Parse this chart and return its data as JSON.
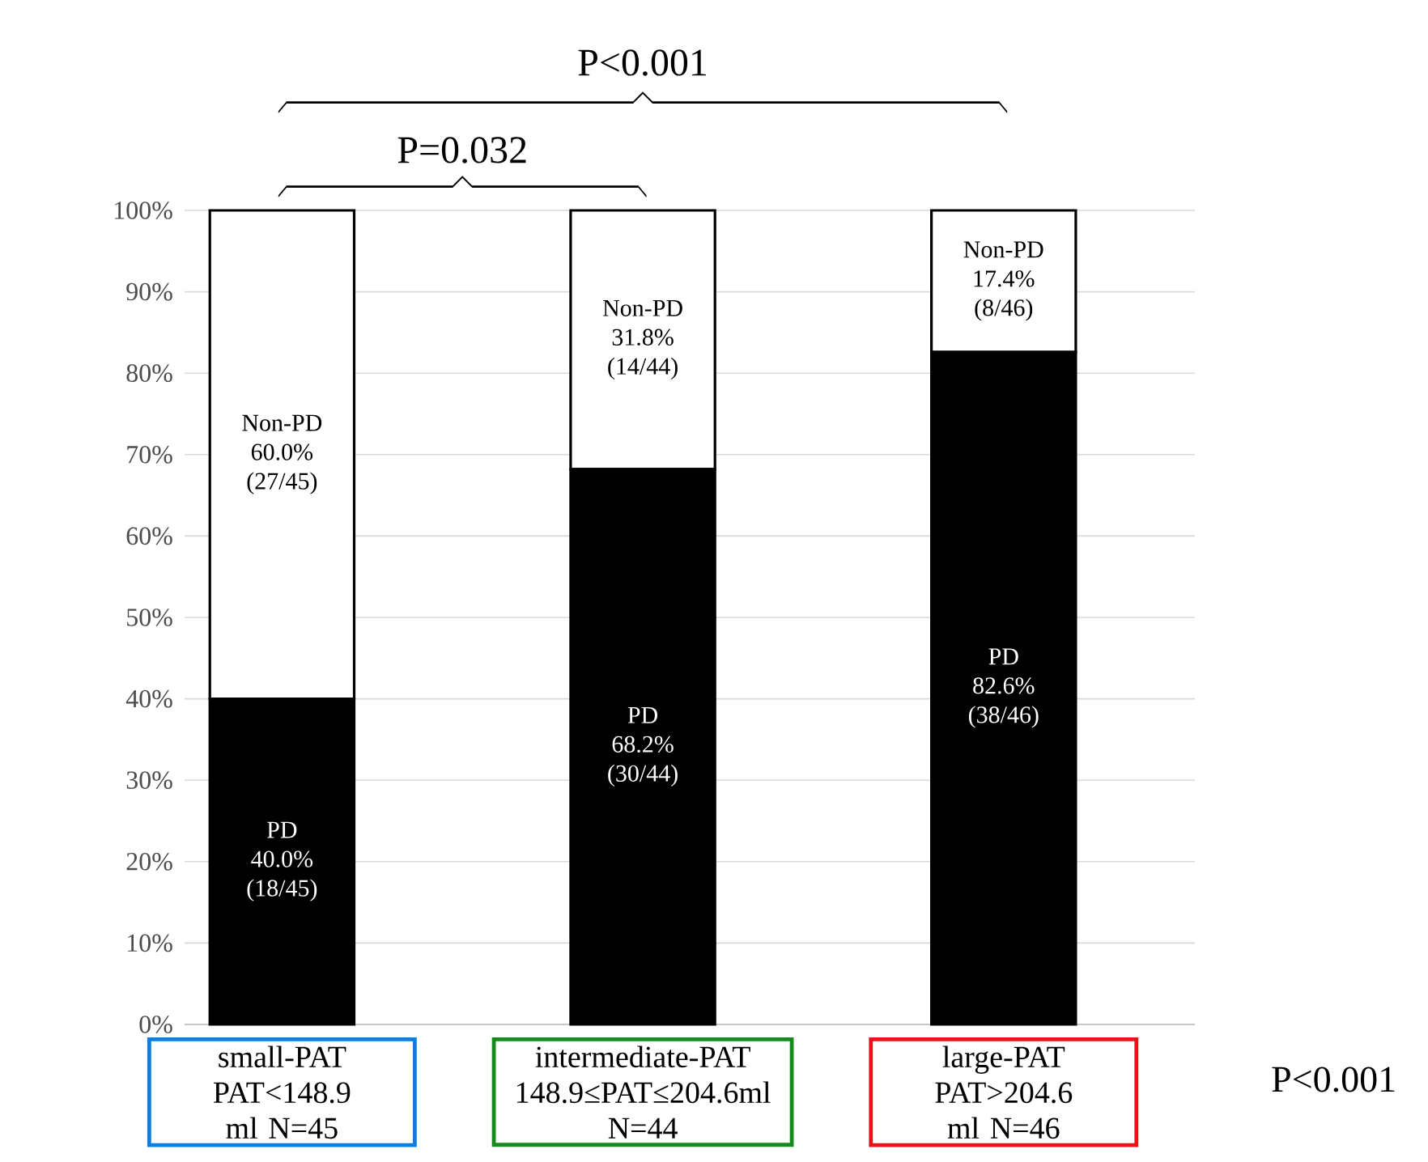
{
  "chart_data": {
    "type": "bar",
    "stacked": true,
    "categories": [
      "small-PAT PAT<148.9 ml N=45",
      "intermediate-PAT 148.9≤PAT≤204.6ml N=44",
      "large-PAT PAT>204.6 ml N=46"
    ],
    "series": [
      {
        "name": "PD",
        "color": "#000000",
        "values": [
          40.0,
          68.2,
          82.6
        ],
        "value_labels": [
          "40.0% (18/45)",
          "68.2% (30/44)",
          "82.6% (38/46)"
        ]
      },
      {
        "name": "Non-PD",
        "color": "#ffffff",
        "values": [
          60.0,
          31.8,
          17.4
        ],
        "value_labels": [
          "60.0% (27/45)",
          "31.8% (14/44)",
          "17.4% (8/46)"
        ]
      }
    ],
    "ylim": [
      0,
      100
    ],
    "yticks": [
      {
        "value": 0,
        "label": "0%"
      },
      {
        "value": 10,
        "label": "10%"
      },
      {
        "value": 20,
        "label": "20%"
      },
      {
        "value": 30,
        "label": "30%"
      },
      {
        "value": 40,
        "label": "40%"
      },
      {
        "value": 50,
        "label": "50%"
      },
      {
        "value": 60,
        "label": "60%"
      },
      {
        "value": 70,
        "label": "70%"
      },
      {
        "value": 80,
        "label": "80%"
      },
      {
        "value": 90,
        "label": "90%"
      },
      {
        "value": 100,
        "label": "100%"
      }
    ],
    "grid": "y",
    "annotations": [
      "P<0.001",
      "P=0.032",
      "P<0.001"
    ]
  }
}
